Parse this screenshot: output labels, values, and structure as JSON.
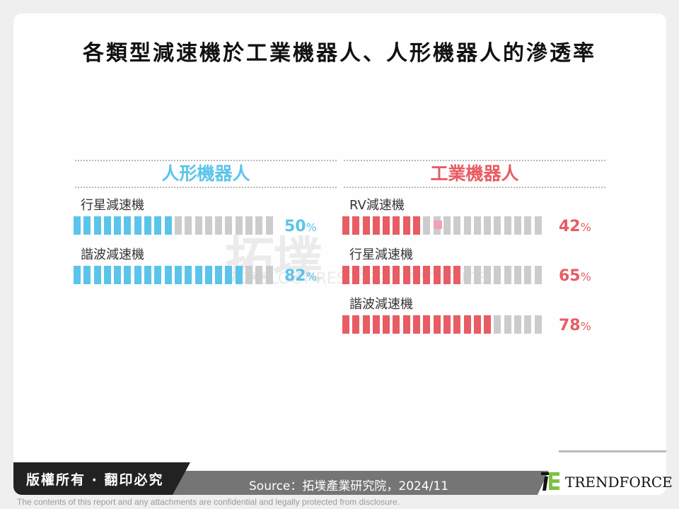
{
  "title": "各類型減速機於工業機器人、人形機器人的滲透率",
  "watermark": {
    "cn": "拓墣",
    "en": "TOPOLOGY RESEARCH INSTITUTE"
  },
  "colors": {
    "humanoid": "#5bc4ea",
    "industrial": "#e85c63",
    "empty": "#cccccc"
  },
  "humanoid": {
    "heading": "人形機器人",
    "rows": [
      {
        "label": "行星減速機",
        "value": "50",
        "filled": 10
      },
      {
        "label": "諧波減速機",
        "value": "82",
        "filled": 17
      }
    ]
  },
  "industrial": {
    "heading": "工業機器人",
    "rows": [
      {
        "label": "RV減速機",
        "value": "42",
        "filled": 8
      },
      {
        "label": "行星減速機",
        "value": "65",
        "filled": 12
      },
      {
        "label": "諧波減速機",
        "value": "78",
        "filled": 15
      }
    ]
  },
  "percent_symbol": "%",
  "total_segments": 20,
  "footer": {
    "copyright": "版權所有 · 翻印必究",
    "source": "Source：拓墣產業研究院，2024/11",
    "logo_text": "TRENDFORCE",
    "disclaimer": "The contents of this report and any attachments are confidential and legally protected from disclosure."
  },
  "chart_data": {
    "type": "bar",
    "title": "各類型減速機於工業機器人、人形機器人的滲透率",
    "series": [
      {
        "name": "人形機器人",
        "categories": [
          "行星減速機",
          "諧波減速機"
        ],
        "values": [
          50,
          82
        ]
      },
      {
        "name": "工業機器人",
        "categories": [
          "RV減速機",
          "行星減速機",
          "諧波減速機"
        ],
        "values": [
          42,
          65,
          78
        ]
      }
    ],
    "unit": "%",
    "ylim": [
      0,
      100
    ],
    "source": "拓墣產業研究院，2024/11"
  }
}
